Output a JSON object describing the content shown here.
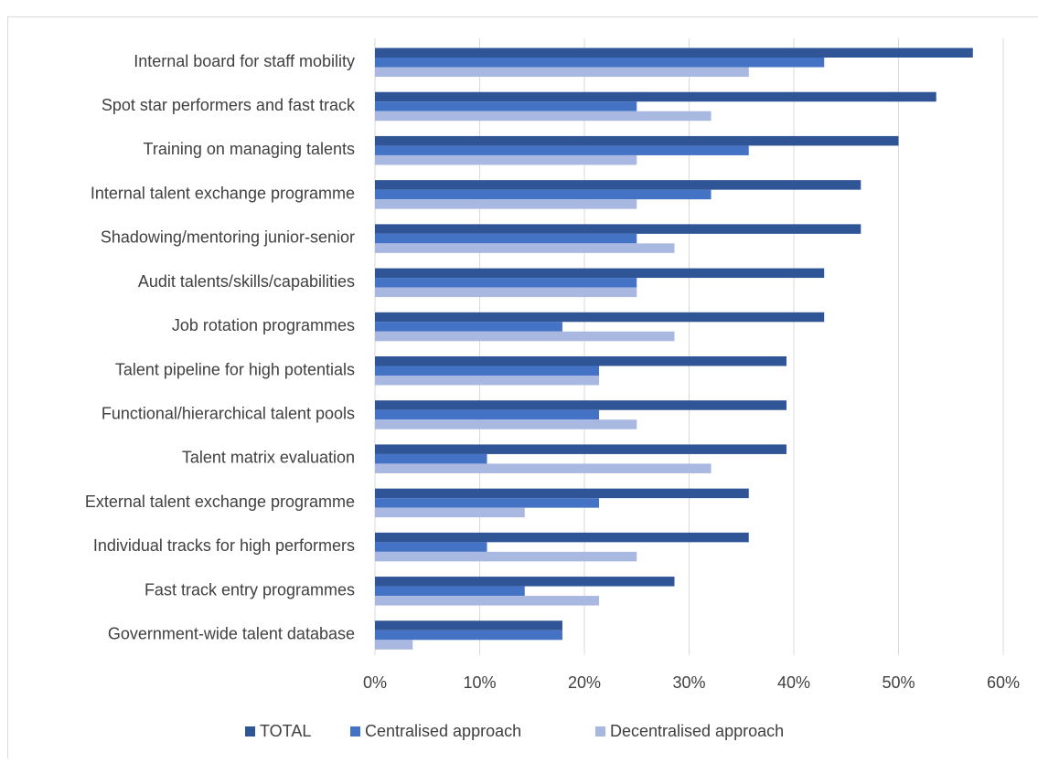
{
  "chart_data": {
    "type": "hbar",
    "categories": [
      "Internal board for staff mobility",
      "Spot star performers and fast track",
      "Training on managing talents",
      "Internal talent exchange programme",
      "Shadowing/mentoring junior-senior",
      "Audit talents/skills/capabilities",
      "Job rotation programmes",
      "Talent pipeline for high potentials",
      "Functional/hierarchical talent pools",
      "Talent matrix evaluation",
      "External talent exchange programme",
      "Individual tracks for high performers",
      "Fast track entry programmes",
      "Government-wide talent database"
    ],
    "series": [
      {
        "name": "TOTAL",
        "color": "#2f5597",
        "values": [
          57.1,
          53.6,
          50,
          46.4,
          46.4,
          42.9,
          42.9,
          39.3,
          39.3,
          39.3,
          35.7,
          35.7,
          28.6,
          17.9
        ]
      },
      {
        "name": "Centralised approach",
        "color": "#4472c4",
        "values": [
          42.9,
          25,
          35.7,
          32.1,
          25,
          25,
          17.9,
          21.4,
          21.4,
          10.7,
          21.4,
          10.7,
          14.3,
          17.9
        ]
      },
      {
        "name": "Decentralised approach",
        "color": "#a9b8e0",
        "values": [
          35.7,
          32.1,
          25,
          25,
          28.6,
          25,
          28.6,
          21.4,
          25,
          32.1,
          14.3,
          25,
          21.4,
          3.6
        ]
      }
    ],
    "xlim": [
      0,
      60
    ],
    "xticks": [
      {
        "value": 0,
        "label": "0%"
      },
      {
        "value": 10,
        "label": "10%"
      },
      {
        "value": 20,
        "label": "20%"
      },
      {
        "value": 30,
        "label": "30%"
      },
      {
        "value": 40,
        "label": "40%"
      },
      {
        "value": 50,
        "label": "50%"
      },
      {
        "value": 60,
        "label": "60%"
      }
    ],
    "grid": true,
    "legend": "bottom"
  }
}
